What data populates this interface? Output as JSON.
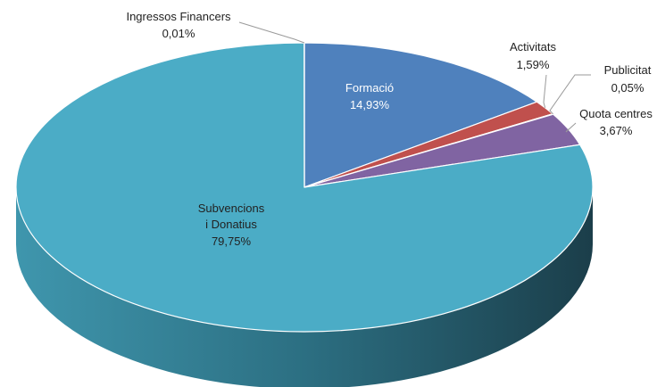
{
  "chart_data": {
    "type": "pie",
    "title": "",
    "style": "3d",
    "slices": [
      {
        "label": "Formació",
        "value": 14.93,
        "value_text": "14,93%",
        "color": "#4f81bd",
        "label_placement": "inside"
      },
      {
        "label": "Activitats",
        "value": 1.59,
        "value_text": "1,59%",
        "color": "#c0504d",
        "label_placement": "outside"
      },
      {
        "label": "Publicitat",
        "value": 0.05,
        "value_text": "0,05%",
        "color": "#9bbb59",
        "label_placement": "outside"
      },
      {
        "label": "Quota centres",
        "value": 3.67,
        "value_text": "3,67%",
        "color": "#8064a2",
        "label_placement": "outside"
      },
      {
        "label": "Subvencions i Donatius",
        "value": 79.75,
        "value_text": "79,75%",
        "color": "#4bacc6",
        "label_placement": "inside"
      },
      {
        "label": "Ingressos Financers",
        "value": 0.01,
        "value_text": "0,01%",
        "color": "#f79646",
        "label_placement": "outside"
      }
    ],
    "legend": "none"
  }
}
